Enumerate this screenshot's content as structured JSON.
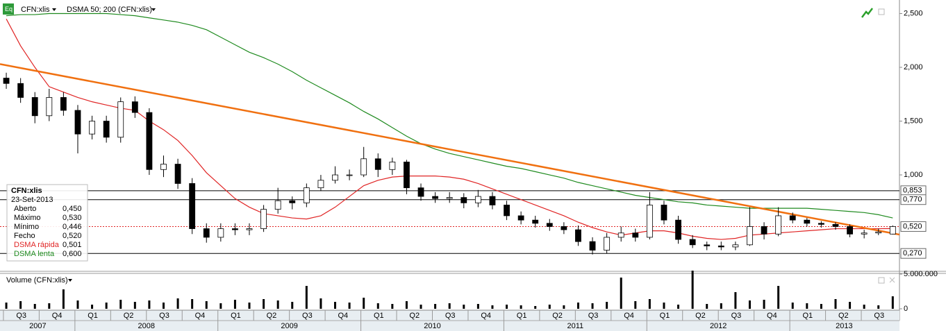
{
  "toolbar": {
    "symbol": "CFN:xlis",
    "indicator": "DSMA 50; 200 (CFN:xlis)"
  },
  "chart_data": [
    {
      "type": "candlestick",
      "x": [
        2007.52,
        2007.62,
        2007.72,
        2007.82,
        2007.92,
        2008.02,
        2008.12,
        2008.22,
        2008.32,
        2008.42,
        2008.52,
        2008.62,
        2008.72,
        2008.82,
        2008.92,
        2009.02,
        2009.12,
        2009.22,
        2009.32,
        2009.42,
        2009.52,
        2009.62,
        2009.72,
        2009.82,
        2009.92,
        2010.02,
        2010.12,
        2010.22,
        2010.32,
        2010.42,
        2010.52,
        2010.62,
        2010.72,
        2010.82,
        2010.92,
        2011.02,
        2011.12,
        2011.22,
        2011.32,
        2011.42,
        2011.52,
        2011.62,
        2011.72,
        2011.82,
        2011.92,
        2012.02,
        2012.12,
        2012.22,
        2012.32,
        2012.42,
        2012.52,
        2012.62,
        2012.72,
        2012.82,
        2012.92,
        2013.02,
        2013.12,
        2013.22,
        2013.32,
        2013.42,
        2013.52,
        2013.62,
        2013.72
      ],
      "open": [
        1.9,
        1.85,
        1.72,
        1.55,
        1.72,
        1.6,
        1.38,
        1.5,
        1.35,
        1.68,
        1.58,
        1.05,
        1.1,
        0.92,
        0.5,
        0.42,
        0.5,
        0.49,
        0.5,
        0.68,
        0.76,
        0.74,
        0.88,
        0.95,
        1.0,
        1.0,
        1.15,
        1.05,
        1.12,
        0.88,
        0.8,
        0.78,
        0.79,
        0.74,
        0.8,
        0.72,
        0.62,
        0.58,
        0.55,
        0.52,
        0.49,
        0.38,
        0.3,
        0.42,
        0.46,
        0.42,
        0.72,
        0.58,
        0.4,
        0.35,
        0.34,
        0.33,
        0.35,
        0.52,
        0.45,
        0.62,
        0.58,
        0.55,
        0.54,
        0.52,
        0.45,
        0.46,
        0.45
      ],
      "high": [
        1.95,
        1.9,
        1.77,
        1.8,
        1.77,
        1.65,
        1.55,
        1.55,
        1.72,
        1.73,
        1.62,
        1.18,
        1.15,
        0.97,
        0.55,
        0.55,
        0.55,
        0.55,
        0.72,
        0.88,
        0.8,
        0.92,
        1.0,
        1.08,
        1.05,
        1.26,
        1.2,
        1.16,
        1.14,
        0.92,
        0.84,
        0.84,
        0.83,
        0.86,
        0.84,
        0.76,
        0.66,
        0.62,
        0.59,
        0.56,
        0.53,
        0.42,
        0.46,
        0.52,
        0.5,
        0.84,
        0.76,
        0.62,
        0.44,
        0.38,
        0.38,
        0.38,
        0.7,
        0.56,
        0.7,
        0.65,
        0.6,
        0.57,
        0.56,
        0.54,
        0.49,
        0.5,
        0.53
      ],
      "low": [
        1.8,
        1.67,
        1.48,
        1.5,
        1.55,
        1.2,
        1.33,
        1.3,
        1.3,
        1.53,
        1.0,
        0.98,
        0.87,
        0.45,
        0.37,
        0.38,
        0.44,
        0.44,
        0.47,
        0.64,
        0.68,
        0.7,
        0.85,
        0.92,
        0.95,
        0.98,
        0.98,
        1.0,
        0.82,
        0.76,
        0.74,
        0.74,
        0.69,
        0.7,
        0.68,
        0.58,
        0.54,
        0.51,
        0.48,
        0.45,
        0.34,
        0.26,
        0.27,
        0.38,
        0.38,
        0.4,
        0.54,
        0.36,
        0.32,
        0.3,
        0.3,
        0.3,
        0.34,
        0.4,
        0.43,
        0.55,
        0.52,
        0.51,
        0.49,
        0.42,
        0.41,
        0.44,
        0.446
      ],
      "close": [
        1.85,
        1.72,
        1.55,
        1.72,
        1.6,
        1.38,
        1.5,
        1.35,
        1.68,
        1.58,
        1.05,
        1.1,
        0.92,
        0.5,
        0.42,
        0.5,
        0.49,
        0.5,
        0.68,
        0.76,
        0.74,
        0.88,
        0.95,
        1.0,
        1.0,
        1.15,
        1.05,
        1.12,
        0.88,
        0.8,
        0.78,
        0.79,
        0.74,
        0.8,
        0.72,
        0.62,
        0.58,
        0.55,
        0.52,
        0.49,
        0.38,
        0.3,
        0.42,
        0.46,
        0.42,
        0.72,
        0.58,
        0.4,
        0.35,
        0.34,
        0.33,
        0.35,
        0.52,
        0.45,
        0.62,
        0.58,
        0.55,
        0.54,
        0.52,
        0.45,
        0.46,
        0.47,
        0.52
      ],
      "series": [
        {
          "name": "DSMA rápida",
          "color": "#e02424",
          "values": [
            2.45,
            2.2,
            2.0,
            1.82,
            1.77,
            1.72,
            1.68,
            1.65,
            1.62,
            1.6,
            1.5,
            1.42,
            1.32,
            1.18,
            1.02,
            0.9,
            0.78,
            0.7,
            0.64,
            0.62,
            0.6,
            0.59,
            0.62,
            0.7,
            0.8,
            0.9,
            0.95,
            0.98,
            0.99,
            0.99,
            0.99,
            0.98,
            0.96,
            0.92,
            0.87,
            0.82,
            0.77,
            0.72,
            0.67,
            0.62,
            0.56,
            0.51,
            0.47,
            0.44,
            0.46,
            0.48,
            0.48,
            0.46,
            0.43,
            0.41,
            0.4,
            0.41,
            0.44,
            0.45,
            0.46,
            0.47,
            0.48,
            0.49,
            0.5,
            0.5,
            0.5,
            0.5,
            0.501
          ]
        },
        {
          "name": "DSMA lenta",
          "color": "#1e8a1e",
          "values": [
            2.48,
            2.49,
            2.49,
            2.5,
            2.5,
            2.5,
            2.5,
            2.5,
            2.49,
            2.48,
            2.46,
            2.44,
            2.42,
            2.39,
            2.35,
            2.28,
            2.21,
            2.14,
            2.09,
            2.03,
            1.96,
            1.88,
            1.81,
            1.74,
            1.67,
            1.59,
            1.52,
            1.44,
            1.36,
            1.29,
            1.24,
            1.2,
            1.17,
            1.14,
            1.11,
            1.08,
            1.06,
            1.03,
            1.0,
            0.97,
            0.93,
            0.9,
            0.87,
            0.84,
            0.81,
            0.79,
            0.77,
            0.75,
            0.74,
            0.72,
            0.71,
            0.7,
            0.69,
            0.69,
            0.69,
            0.69,
            0.69,
            0.68,
            0.67,
            0.66,
            0.65,
            0.63,
            0.6
          ]
        }
      ],
      "trendline": {
        "color": "#f07010",
        "x": [
          2007.476,
          2013.767
        ],
        "values": [
          2.03,
          0.445
        ]
      },
      "levels": [
        {
          "value": 0.853,
          "label": "0,853"
        },
        {
          "value": 0.77,
          "label": "0,770"
        },
        {
          "value": 0.27,
          "label": "0,270"
        }
      ],
      "last_price": {
        "value": 0.52,
        "label": "0,520"
      },
      "xlim": [
        2007.476,
        2013.767
      ],
      "ylim": [
        0.11,
        2.626
      ],
      "yticks": [
        {
          "value": 2.5,
          "label": "2,500"
        },
        {
          "value": 2.0,
          "label": "2,000"
        },
        {
          "value": 1.5,
          "label": "1,500"
        },
        {
          "value": 1.0,
          "label": "1,000"
        }
      ],
      "info": {
        "symbol": "CFN:xlis",
        "date": "23-Set-2013",
        "rows": [
          [
            "Aberto",
            "0,450"
          ],
          [
            "Máximo",
            "0,530"
          ],
          [
            "Mínimo",
            "0,446"
          ],
          [
            "Fecho",
            "0,520"
          ]
        ],
        "ma_values": [
          "0,501",
          "0,600"
        ]
      }
    },
    {
      "type": "bar",
      "title": "Volume (CFN:xlis)",
      "color": "#000000",
      "x": [
        2007.52,
        2007.62,
        2007.72,
        2007.82,
        2007.92,
        2008.02,
        2008.12,
        2008.22,
        2008.32,
        2008.42,
        2008.52,
        2008.62,
        2008.72,
        2008.82,
        2008.92,
        2009.02,
        2009.12,
        2009.22,
        2009.32,
        2009.42,
        2009.52,
        2009.62,
        2009.72,
        2009.82,
        2009.92,
        2010.02,
        2010.12,
        2010.22,
        2010.32,
        2010.42,
        2010.52,
        2010.62,
        2010.72,
        2010.82,
        2010.92,
        2011.02,
        2011.12,
        2011.22,
        2011.32,
        2011.42,
        2011.52,
        2011.62,
        2011.72,
        2011.82,
        2011.92,
        2012.02,
        2012.12,
        2012.22,
        2012.32,
        2012.42,
        2012.52,
        2012.62,
        2012.72,
        2012.82,
        2012.92,
        2013.02,
        2013.12,
        2013.22,
        2013.32,
        2013.42,
        2013.52,
        2013.62,
        2013.72
      ],
      "values": [
        900000,
        1100000,
        700000,
        800000,
        2800000,
        1200000,
        600000,
        900000,
        1300000,
        1000000,
        1200000,
        900000,
        1500000,
        1400000,
        1100000,
        800000,
        1300000,
        900000,
        1400000,
        1200000,
        1000000,
        3300000,
        1500000,
        1000000,
        900000,
        1600000,
        800000,
        700000,
        1100000,
        600000,
        700000,
        800000,
        600000,
        700000,
        500000,
        600000,
        500000,
        400000,
        600000,
        500000,
        900000,
        800000,
        1000000,
        4500000,
        1100000,
        1400000,
        900000,
        600000,
        5500000,
        700000,
        800000,
        2400000,
        1200000,
        1300000,
        3300000,
        900000,
        800000,
        700000,
        1400000,
        1000000,
        600000,
        500000,
        1800000
      ],
      "xlim": [
        2007.476,
        2013.767
      ],
      "ylim": [
        0,
        5500000
      ],
      "yticks": [
        {
          "value": 5000000,
          "label": "5.000.000"
        },
        0
      ],
      "xticks": [
        {
          "value": 2007.625,
          "label": "Q3"
        },
        {
          "value": 2007.875,
          "label": "Q4"
        },
        {
          "value": 2008.125,
          "label": "Q1"
        },
        {
          "value": 2008.375,
          "label": "Q2"
        },
        {
          "value": 2008.625,
          "label": "Q3"
        },
        {
          "value": 2008.875,
          "label": "Q4"
        },
        {
          "value": 2009.125,
          "label": "Q1"
        },
        {
          "value": 2009.375,
          "label": "Q2"
        },
        {
          "value": 2009.625,
          "label": "Q3"
        },
        {
          "value": 2009.875,
          "label": "Q4"
        },
        {
          "value": 2010.125,
          "label": "Q1"
        },
        {
          "value": 2010.375,
          "label": "Q2"
        },
        {
          "value": 2010.625,
          "label": "Q3"
        },
        {
          "value": 2010.875,
          "label": "Q4"
        },
        {
          "value": 2011.125,
          "label": "Q1"
        },
        {
          "value": 2011.375,
          "label": "Q2"
        },
        {
          "value": 2011.625,
          "label": "Q3"
        },
        {
          "value": 2011.875,
          "label": "Q4"
        },
        {
          "value": 2012.125,
          "label": "Q1"
        },
        {
          "value": 2012.375,
          "label": "Q2"
        },
        {
          "value": 2012.625,
          "label": "Q3"
        },
        {
          "value": 2012.875,
          "label": "Q4"
        },
        {
          "value": 2013.125,
          "label": "Q1"
        },
        {
          "value": 2013.375,
          "label": "Q2"
        },
        {
          "value": 2013.625,
          "label": "Q3"
        }
      ],
      "year_labels": [
        {
          "value": 2007.74,
          "label": "2007"
        },
        {
          "value": 2008.5,
          "label": "2008"
        },
        {
          "value": 2009.5,
          "label": "2009"
        },
        {
          "value": 2010.5,
          "label": "2010"
        },
        {
          "value": 2011.5,
          "label": "2011"
        },
        {
          "value": 2012.5,
          "label": "2012"
        },
        {
          "value": 2013.38,
          "label": "2013"
        }
      ]
    }
  ]
}
